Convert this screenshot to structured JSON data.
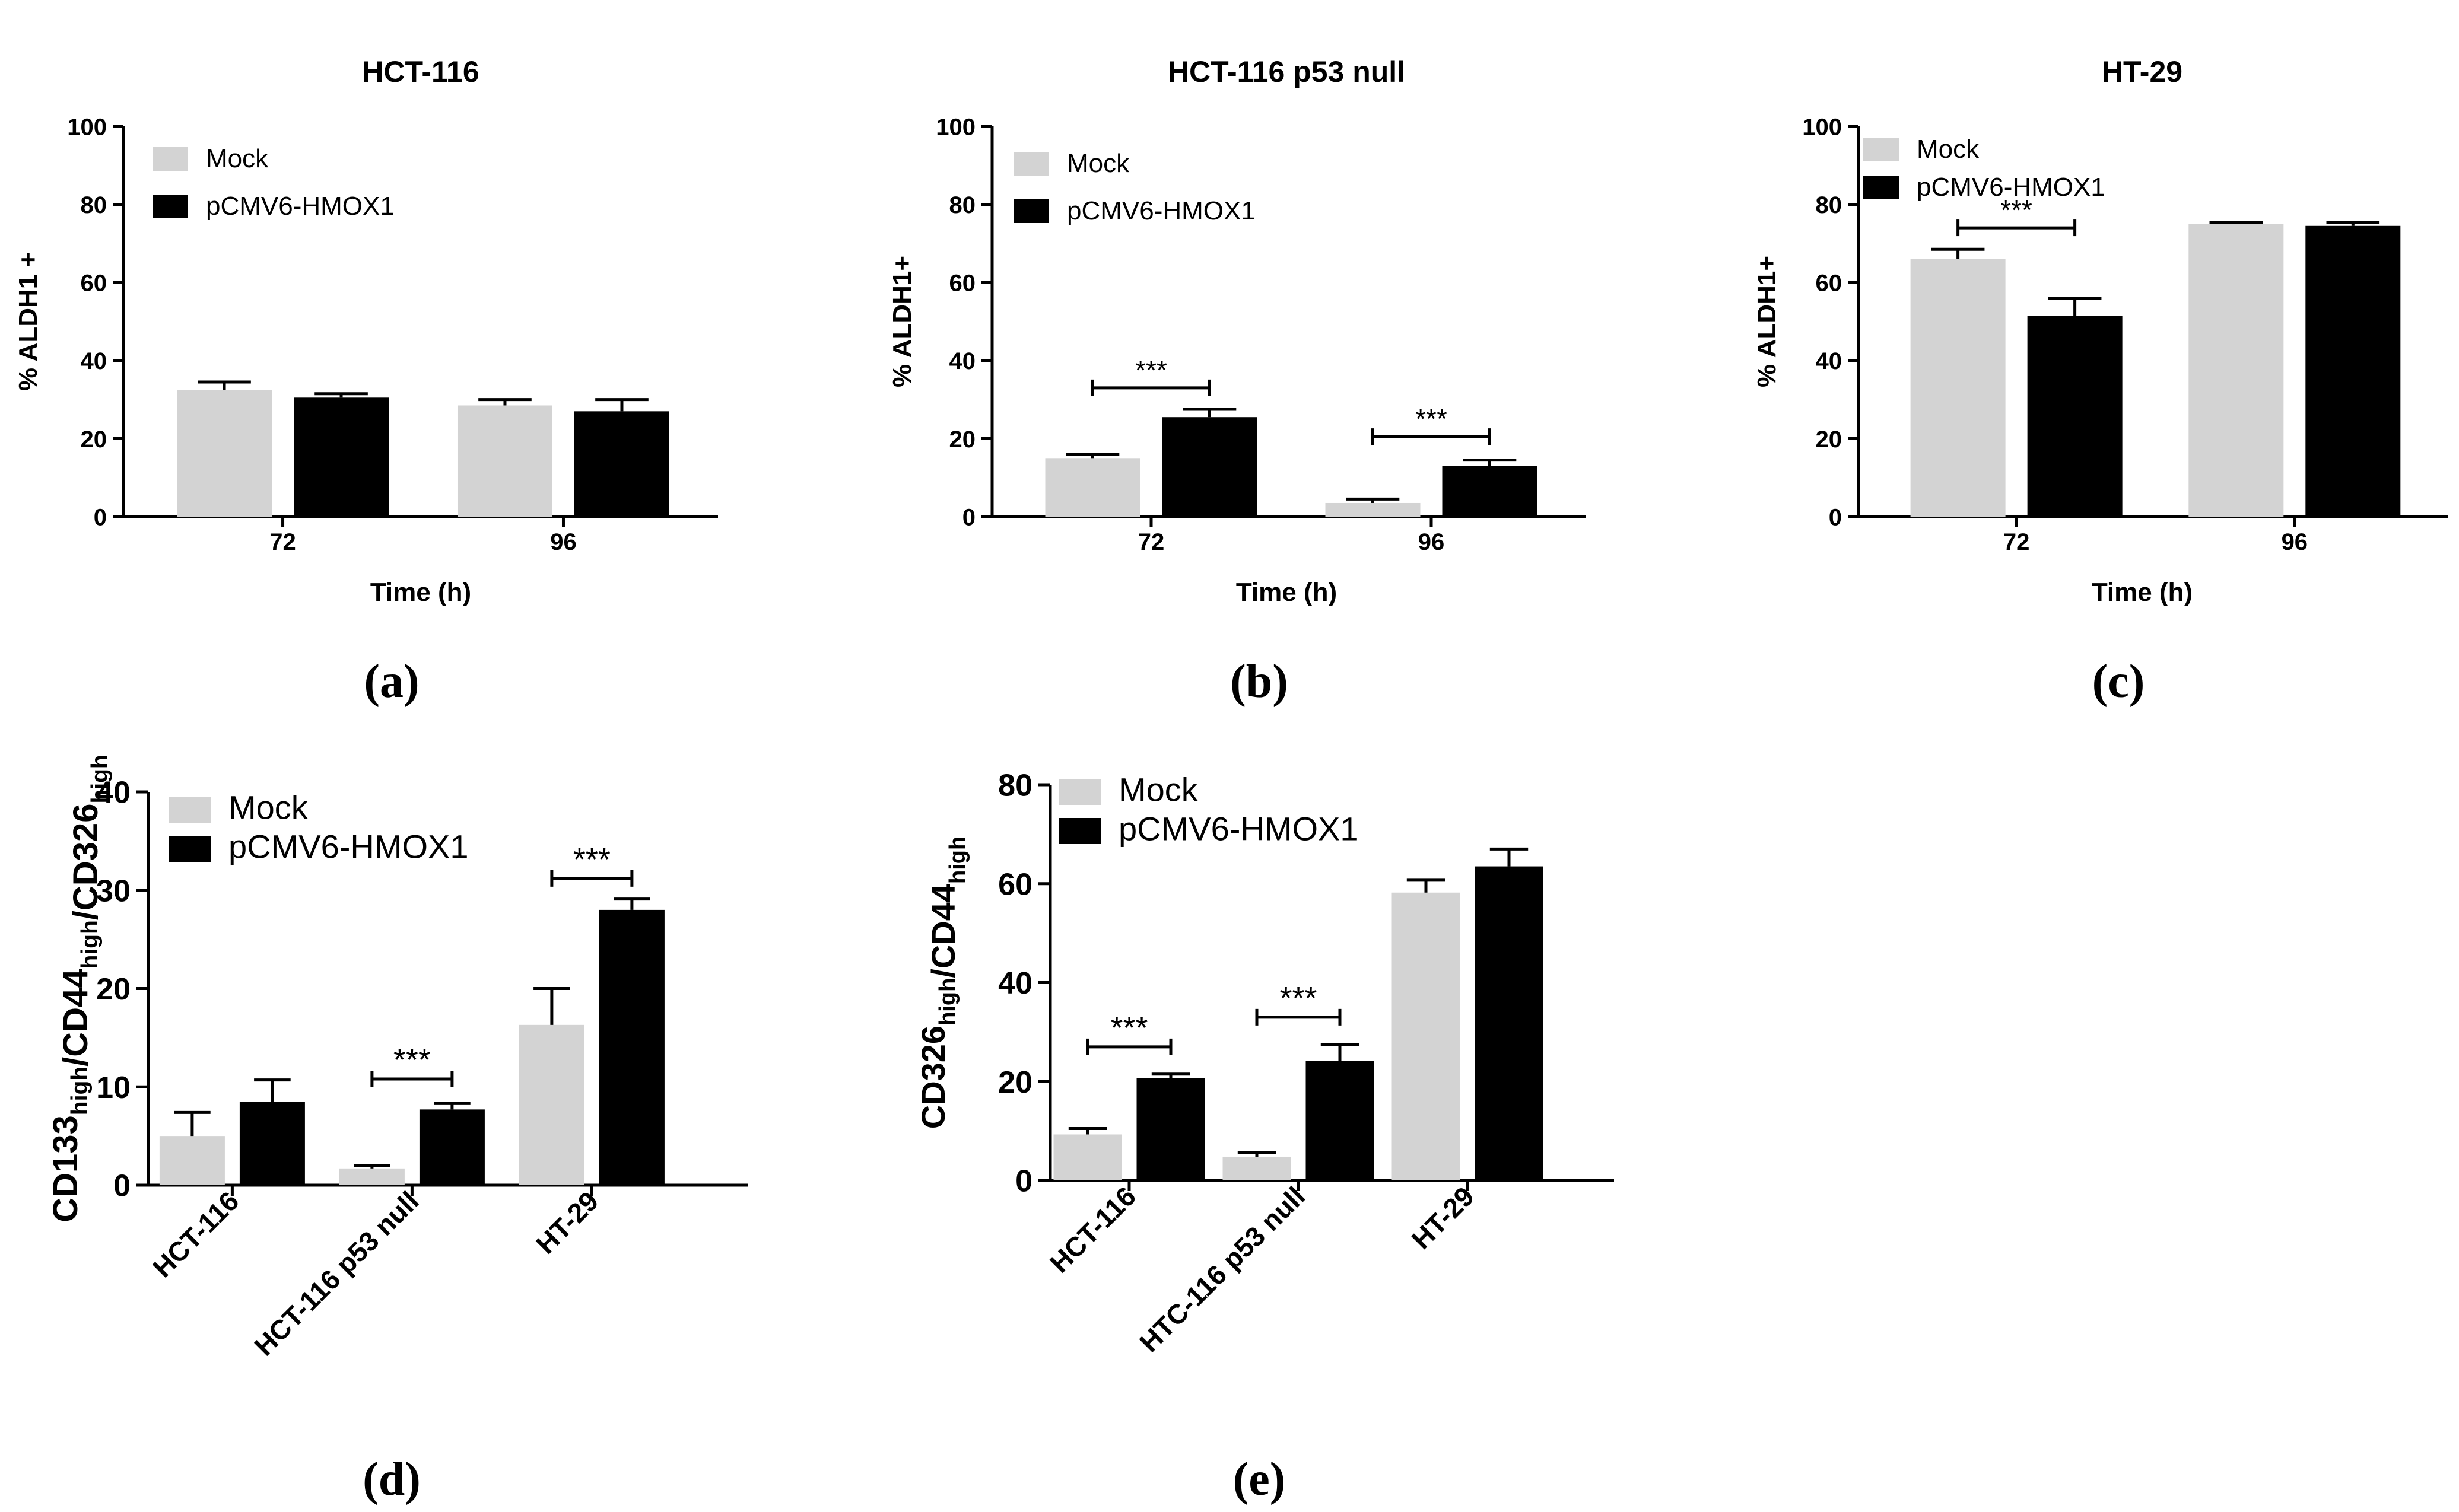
{
  "colors": {
    "mock": "#d3d3d3",
    "hmox1": "#000000",
    "axis": "#000000"
  },
  "chart_data": [
    {
      "type": "bar",
      "panel_label": "(a)",
      "title": "HCT-116",
      "xlabel": "Time (h)",
      "ylabel": "% ALDH1 +",
      "categories": [
        "72",
        "96"
      ],
      "ylim": [
        0,
        100
      ],
      "yticks": [
        "0",
        "20",
        "40",
        "60",
        "80",
        "100"
      ],
      "legend": {
        "position": "top-left",
        "entries": [
          "Mock",
          "pCMV6-HMOX1"
        ]
      },
      "series": [
        {
          "name": "Mock",
          "values": [
            32.5,
            28.5
          ],
          "errors": [
            2.0,
            1.5
          ]
        },
        {
          "name": "pCMV6-HMOX1",
          "values": [
            30.5,
            27
          ],
          "errors": [
            1.0,
            3.0
          ]
        }
      ],
      "significance": []
    },
    {
      "type": "bar",
      "panel_label": "(b)",
      "title": "HCT-116 p53 null",
      "xlabel": "Time (h)",
      "ylabel": "% ALDH1+",
      "categories": [
        "72",
        "96"
      ],
      "ylim": [
        0,
        100
      ],
      "yticks": [
        "0",
        "20",
        "40",
        "60",
        "80",
        "100"
      ],
      "legend": {
        "position": "top-left",
        "entries": [
          "Mock",
          "pCMV6-HMOX1"
        ]
      },
      "series": [
        {
          "name": "Mock",
          "values": [
            15,
            3.5
          ],
          "errors": [
            1.0,
            1.0
          ]
        },
        {
          "name": "pCMV6-HMOX1",
          "values": [
            25.5,
            13
          ],
          "errors": [
            2.0,
            1.5
          ]
        }
      ],
      "significance": [
        {
          "category": 0,
          "y": 33,
          "label": "***"
        },
        {
          "category": 1,
          "y": 20.5,
          "label": "***"
        }
      ]
    },
    {
      "type": "bar",
      "panel_label": "(c)",
      "title": "HT-29",
      "xlabel": "Time (h)",
      "ylabel": "% ALDH1+",
      "categories": [
        "72",
        "96"
      ],
      "ylim": [
        0,
        100
      ],
      "yticks": [
        "0",
        "20",
        "40",
        "60",
        "80",
        "100"
      ],
      "legend": {
        "position": "top-left",
        "entries": [
          "Mock",
          "pCMV6-HMOX1"
        ]
      },
      "series": [
        {
          "name": "Mock",
          "values": [
            66,
            75
          ],
          "errors": [
            2.5,
            0.3
          ]
        },
        {
          "name": "pCMV6-HMOX1",
          "values": [
            51.5,
            74.5
          ],
          "errors": [
            4.5,
            0.8
          ]
        }
      ],
      "significance": [
        {
          "category": 0,
          "y": 74,
          "label": "***"
        }
      ]
    },
    {
      "type": "bar",
      "panel_label": "(d)",
      "title": "",
      "xlabel": "",
      "ylabel_parts": [
        {
          "text": "CD133",
          "sub": "high"
        },
        {
          "text": "/CD44",
          "sub": "high"
        },
        {
          "text": "/CD326",
          "sub": "high"
        }
      ],
      "categories": [
        "HCT-116",
        "HCT-116 p53 null",
        "HT-29"
      ],
      "ylim": [
        0,
        40
      ],
      "yticks": [
        "0",
        "10",
        "20",
        "30",
        "40"
      ],
      "legend": {
        "position": "top-left",
        "entries": [
          "Mock",
          "pCMV6-HMOX1"
        ]
      },
      "series": [
        {
          "name": "Mock",
          "values": [
            5,
            1.7,
            16.3
          ],
          "errors": [
            2.4,
            0.3,
            3.7
          ]
        },
        {
          "name": "pCMV6-HMOX1",
          "values": [
            8.5,
            7.7,
            28
          ],
          "errors": [
            2.2,
            0.6,
            1.1
          ]
        }
      ],
      "significance": [
        {
          "category": 1,
          "y": 10.8,
          "label": "***"
        },
        {
          "category": 2,
          "y": 31.2,
          "label": "***"
        }
      ]
    },
    {
      "type": "bar",
      "panel_label": "(e)",
      "title": "",
      "xlabel": "",
      "ylabel_parts": [
        {
          "text": "CD326",
          "sub": "high"
        },
        {
          "text": "/CD44",
          "sub": "high"
        }
      ],
      "categories": [
        "HCT-116",
        "HTC-116 p53 null",
        "HT-29"
      ],
      "ylim": [
        0,
        80
      ],
      "yticks": [
        "0",
        "20",
        "40",
        "60",
        "80"
      ],
      "legend": {
        "position": "top-left",
        "entries": [
          "Mock",
          "pCMV6-HMOX1"
        ]
      },
      "series": [
        {
          "name": "Mock",
          "values": [
            9.3,
            4.8,
            58.2
          ],
          "errors": [
            1.2,
            0.8,
            2.5
          ]
        },
        {
          "name": "pCMV6-HMOX1",
          "values": [
            20.7,
            24.2,
            63.5
          ],
          "errors": [
            0.8,
            3.2,
            3.5
          ]
        }
      ],
      "significance": [
        {
          "category": 0,
          "y": 27,
          "label": "***"
        },
        {
          "category": 1,
          "y": 33,
          "label": "***"
        }
      ]
    }
  ]
}
